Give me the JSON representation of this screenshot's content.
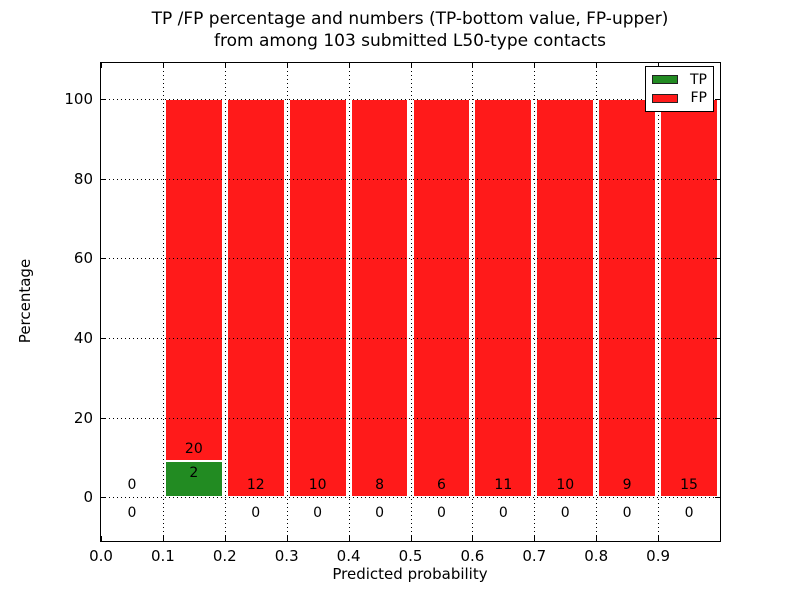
{
  "figure": {
    "title_line1": "TP /FP percentage and numbers (TP-bottom value, FP-upper)",
    "title_line2": "from among 103 submitted L50-type contacts",
    "xlabel": "Predicted probability",
    "ylabel": "Percentage"
  },
  "colors": {
    "tp": "#228b22",
    "fp": "#ff1a1a",
    "grid": "#000000",
    "text": "#000000",
    "background": "#ffffff"
  },
  "chart_data": {
    "type": "bar",
    "stacked": true,
    "title": "TP /FP percentage and numbers (TP-bottom value, FP-upper) from among 103 submitted L50-type contacts",
    "xlabel": "Predicted probability",
    "ylabel": "Percentage",
    "total_contacts": 103,
    "xlim": [
      0.0,
      1.0
    ],
    "ylim": [
      -11,
      109
    ],
    "bin_width": 0.1,
    "x_tick_labels": [
      "0.0",
      "0.1",
      "0.2",
      "0.3",
      "0.4",
      "0.5",
      "0.6",
      "0.7",
      "0.8",
      "0.9"
    ],
    "y_tick_values": [
      0,
      20,
      40,
      60,
      80,
      100
    ],
    "grid": "dotted",
    "legend_position": "upper right",
    "legend": [
      {
        "label": "TP",
        "color": "#228b22"
      },
      {
        "label": "FP",
        "color": "#ff1a1a"
      }
    ],
    "series": [
      {
        "name": "TP",
        "color": "#228b22",
        "counts": [
          0,
          2,
          0,
          0,
          0,
          0,
          0,
          0,
          0,
          0
        ]
      },
      {
        "name": "FP",
        "color": "#ff1a1a",
        "counts": [
          0,
          20,
          12,
          10,
          8,
          6,
          11,
          10,
          9,
          15
        ]
      }
    ],
    "bins": [
      {
        "x_start": 0.0,
        "tp_count": 0,
        "fp_count": 0,
        "tp_pct": 0,
        "fp_pct": 0
      },
      {
        "x_start": 0.1,
        "tp_count": 2,
        "fp_count": 20,
        "tp_pct": 9.0909,
        "fp_pct": 90.9091
      },
      {
        "x_start": 0.2,
        "tp_count": 0,
        "fp_count": 12,
        "tp_pct": 0,
        "fp_pct": 100
      },
      {
        "x_start": 0.3,
        "tp_count": 0,
        "fp_count": 10,
        "tp_pct": 0,
        "fp_pct": 100
      },
      {
        "x_start": 0.4,
        "tp_count": 0,
        "fp_count": 8,
        "tp_pct": 0,
        "fp_pct": 100
      },
      {
        "x_start": 0.5,
        "tp_count": 0,
        "fp_count": 6,
        "tp_pct": 0,
        "fp_pct": 100
      },
      {
        "x_start": 0.6,
        "tp_count": 0,
        "fp_count": 11,
        "tp_pct": 0,
        "fp_pct": 100
      },
      {
        "x_start": 0.7,
        "tp_count": 0,
        "fp_count": 10,
        "tp_pct": 0,
        "fp_pct": 100
      },
      {
        "x_start": 0.8,
        "tp_count": 0,
        "fp_count": 9,
        "tp_pct": 0,
        "fp_pct": 100
      },
      {
        "x_start": 0.9,
        "tp_count": 0,
        "fp_count": 15,
        "tp_pct": 0,
        "fp_pct": 100
      }
    ]
  }
}
